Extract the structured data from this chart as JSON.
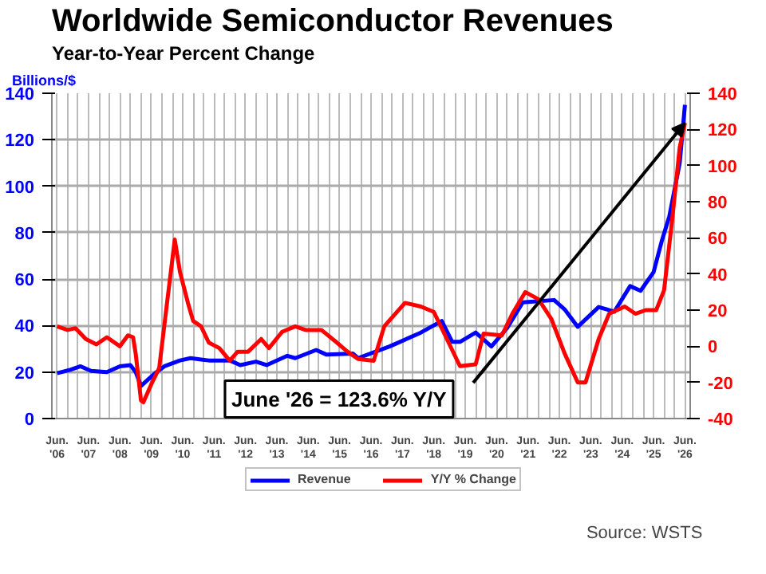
{
  "chart_data": {
    "type": "line",
    "title": "Worldwide Semiconductor Revenues",
    "subtitle": "Year-to-Year Percent Change",
    "ylabel": "Billions/$",
    "xlim": [
      "2006-04",
      "2026-08"
    ],
    "ylim": [
      0,
      140
    ],
    "yticks": [
      0,
      20,
      40,
      60,
      80,
      100,
      120,
      140
    ],
    "y2lim": [
      -40,
      140
    ],
    "y2ticks": [
      -40,
      -20,
      0,
      20,
      40,
      60,
      80,
      100,
      120,
      140
    ],
    "xticks": [
      {
        "value": "2006-06",
        "label": "Jun.\n'06"
      },
      {
        "value": "2006-10",
        "label": null
      },
      {
        "value": "2007-02",
        "label": null
      },
      {
        "value": "2007-06",
        "label": "Jun.\n'07"
      },
      {
        "value": "2007-10",
        "label": null
      },
      {
        "value": "2008-02",
        "label": null
      },
      {
        "value": "2008-06",
        "label": "Jun.\n'08"
      },
      {
        "value": "2008-10",
        "label": null
      },
      {
        "value": "2009-02",
        "label": null
      },
      {
        "value": "2009-06",
        "label": "Jun.\n'09"
      },
      {
        "value": "2009-10",
        "label": null
      },
      {
        "value": "2010-02",
        "label": null
      },
      {
        "value": "2010-06",
        "label": "Jun.\n'10"
      },
      {
        "value": "2010-10",
        "label": null
      },
      {
        "value": "2011-02",
        "label": null
      },
      {
        "value": "2011-06",
        "label": "Jun.\n'11"
      },
      {
        "value": "2011-10",
        "label": null
      },
      {
        "value": "2012-02",
        "label": null
      },
      {
        "value": "2012-06",
        "label": "Jun.\n'12"
      },
      {
        "value": "2012-10",
        "label": null
      },
      {
        "value": "2013-02",
        "label": null
      },
      {
        "value": "2013-06",
        "label": "Jun.\n'13"
      },
      {
        "value": "2013-10",
        "label": null
      },
      {
        "value": "2014-02",
        "label": null
      },
      {
        "value": "2014-06",
        "label": "Jun.\n'14"
      },
      {
        "value": "2014-10",
        "label": null
      },
      {
        "value": "2015-02",
        "label": null
      },
      {
        "value": "2015-06",
        "label": "Jun.\n'15"
      },
      {
        "value": "2015-10",
        "label": null
      },
      {
        "value": "2016-02",
        "label": null
      },
      {
        "value": "2016-06",
        "label": "Jun.\n'16"
      },
      {
        "value": "2016-10",
        "label": null
      },
      {
        "value": "2017-02",
        "label": null
      },
      {
        "value": "2017-06",
        "label": "Jun.\n'17"
      },
      {
        "value": "2017-10",
        "label": null
      },
      {
        "value": "2018-02",
        "label": null
      },
      {
        "value": "2018-06",
        "label": "Jun.\n'18"
      },
      {
        "value": "2018-10",
        "label": null
      },
      {
        "value": "2019-02",
        "label": null
      },
      {
        "value": "2019-06",
        "label": "Jun.\n'19"
      },
      {
        "value": "2019-10",
        "label": null
      },
      {
        "value": "2020-02",
        "label": null
      },
      {
        "value": "2020-06",
        "label": "Jun.\n'20"
      },
      {
        "value": "2020-10",
        "label": null
      },
      {
        "value": "2021-02",
        "label": null
      },
      {
        "value": "2021-06",
        "label": "Jun.\n'21"
      },
      {
        "value": "2021-10",
        "label": null
      },
      {
        "value": "2022-02",
        "label": null
      },
      {
        "value": "2022-06",
        "label": "Jun.\n'22"
      },
      {
        "value": "2022-10",
        "label": null
      },
      {
        "value": "2023-02",
        "label": null
      },
      {
        "value": "2023-06",
        "label": "Jun.\n'23"
      },
      {
        "value": "2023-10",
        "label": null
      },
      {
        "value": "2024-02",
        "label": null
      },
      {
        "value": "2024-06",
        "label": "Jun.\n'24"
      },
      {
        "value": "2024-10",
        "label": null
      },
      {
        "value": "2025-02",
        "label": null
      },
      {
        "value": "2025-06",
        "label": "Jun.\n'25"
      },
      {
        "value": "2025-10",
        "label": null
      },
      {
        "value": "2026-02",
        "label": null
      },
      {
        "value": "2026-06",
        "label": "Jun.\n'26"
      }
    ],
    "series": [
      {
        "name": "Revenue",
        "color": "#0000ff",
        "x": [
          "2006-06",
          "2006-11",
          "2007-03",
          "2007-07",
          "2008-01",
          "2008-06",
          "2008-10",
          "2008-12",
          "2009-02",
          "2009-05",
          "2009-08",
          "2009-11",
          "2010-05",
          "2010-09",
          "2011-04",
          "2011-12",
          "2012-04",
          "2012-10",
          "2013-02",
          "2013-10",
          "2014-01",
          "2014-09",
          "2015-01",
          "2015-11",
          "2016-01",
          "2017-01",
          "2018-01",
          "2018-09",
          "2019-01",
          "2019-04",
          "2019-10",
          "2020-04",
          "2020-10",
          "2021-04",
          "2022-04",
          "2022-08",
          "2023-01",
          "2023-09",
          "2024-03",
          "2024-09",
          "2025-01",
          "2025-06",
          "2025-09",
          "2025-12",
          "2026-04",
          "2026-06"
        ],
        "values": [
          19.5,
          21,
          22.5,
          20.5,
          20,
          22.5,
          23,
          20,
          14,
          17,
          20,
          22.5,
          25,
          26,
          25,
          25,
          23,
          24.5,
          23,
          27,
          26,
          29.5,
          27.5,
          28,
          26,
          31,
          37,
          42,
          33,
          33,
          37,
          31,
          39,
          50,
          51,
          47,
          39.5,
          48,
          46,
          57,
          55,
          63,
          76,
          87,
          110,
          135
        ]
      },
      {
        "name": "Y/Y % Change",
        "color": "#ff0000",
        "axis": "y2",
        "x": [
          "2006-06",
          "2006-10",
          "2007-01",
          "2007-05",
          "2007-09",
          "2008-01",
          "2008-06",
          "2008-09",
          "2008-11",
          "2008-12",
          "2009-02",
          "2009-03",
          "2009-06",
          "2009-09",
          "2009-12",
          "2010-03",
          "2010-05",
          "2010-08",
          "2010-10",
          "2011-01",
          "2011-04",
          "2011-08",
          "2011-12",
          "2012-03",
          "2012-07",
          "2012-12",
          "2013-03",
          "2013-08",
          "2014-01",
          "2014-05",
          "2014-11",
          "2015-05",
          "2015-09",
          "2016-01",
          "2016-07",
          "2016-11",
          "2017-07",
          "2018-01",
          "2018-06",
          "2018-10",
          "2019-04",
          "2019-10",
          "2020-01",
          "2020-08",
          "2020-12",
          "2021-05",
          "2021-10",
          "2022-03",
          "2022-08",
          "2023-01",
          "2023-04",
          "2023-09",
          "2024-01",
          "2024-07",
          "2024-11",
          "2025-03",
          "2025-07",
          "2025-10",
          "2026-01",
          "2026-04",
          "2026-06"
        ],
        "values": [
          11,
          9,
          10,
          4,
          1,
          5,
          0,
          6,
          5,
          -4,
          -30,
          -31,
          -21,
          -12,
          24,
          59,
          41,
          24,
          14,
          11,
          2,
          -1,
          -8,
          -3,
          -3,
          4,
          -1,
          8,
          11,
          9,
          9,
          2,
          -3,
          -7,
          -8,
          11,
          24,
          22,
          19,
          7,
          -11,
          -10,
          7,
          6,
          18,
          30,
          26,
          15,
          -4,
          -20,
          -20,
          4,
          18,
          22,
          18,
          20,
          20,
          31,
          69,
          110,
          123.6
        ]
      }
    ],
    "annotations": [
      "June '26 = 123.6% Y/Y",
      "Source: WSTS"
    ],
    "grid": true,
    "legend": "bottom"
  }
}
